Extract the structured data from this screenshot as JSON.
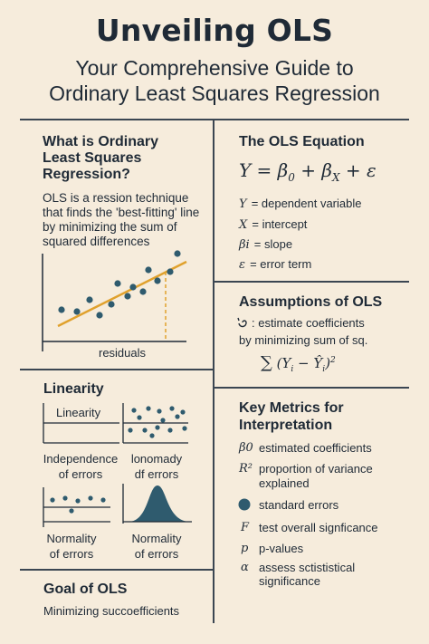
{
  "header": {
    "title": "Unveiling OLS",
    "subtitle_line1": "Your Comprehensive Guide to",
    "subtitle_line2": "Ordinary Least Squares Regression"
  },
  "what_is": {
    "heading_line1": "What is Ordinary",
    "heading_line2": "Least Squares",
    "heading_line3": "Regression?",
    "desc_line1": "OLS is a ression technique",
    "desc_line2": "that finds the 'best-fitting' line",
    "desc_line3": "by minimizing the sum of",
    "desc_line4": "squared differences",
    "plot_label": "residuals"
  },
  "equation": {
    "heading": "The OLS Equation",
    "formula": "Y = β0 + βX + ε",
    "defs": [
      {
        "sym": "Y",
        "text": "= dependent variable"
      },
      {
        "sym": "X",
        "text": "= intercept"
      },
      {
        "sym": "βi",
        "text": "= slope"
      },
      {
        "sym": "ε",
        "text": "= error term"
      }
    ]
  },
  "assumptions": {
    "heading": "Assumptions of OLS",
    "line1": ": estimate coefficients",
    "line2": "by minimizing sum of sq.",
    "formula": "∑ (Yi − Ŷi)²"
  },
  "linearity": {
    "heading": "Linearity",
    "panels": [
      {
        "label": "Linearity"
      },
      {
        "label": ""
      },
      {
        "label_line1": "Independence",
        "label_line2": "of errors"
      },
      {
        "label_line1": "lonomady",
        "label_line2": "df errors"
      },
      {
        "label_line1": "Normality",
        "label_line2": "of errors"
      },
      {
        "label_line1": "Normality",
        "label_line2": "of errors"
      }
    ]
  },
  "metrics": {
    "heading_line1": "Key Metrics for",
    "heading_line2": "Interpretation",
    "items": [
      {
        "sym": "β0",
        "line1": "estimated coefficients",
        "line2": ""
      },
      {
        "sym": "R²",
        "line1": "proportion of variance",
        "line2": "explained"
      },
      {
        "sym": "",
        "line1": "standard errors",
        "line2": ""
      },
      {
        "sym": "F",
        "line1": "test overall signficance",
        "line2": ""
      },
      {
        "sym": "p",
        "line1": "p-values",
        "line2": ""
      },
      {
        "sym": "α",
        "line1": "assess sctististical",
        "line2": "significance"
      }
    ]
  },
  "goal": {
    "heading": "Goal of OLS",
    "text": "Minimizing succoefficients"
  },
  "colors": {
    "background": "#f6ecdc",
    "ink": "#1f2a36",
    "point": "#2f5b6e",
    "line": "#e0a12d"
  }
}
